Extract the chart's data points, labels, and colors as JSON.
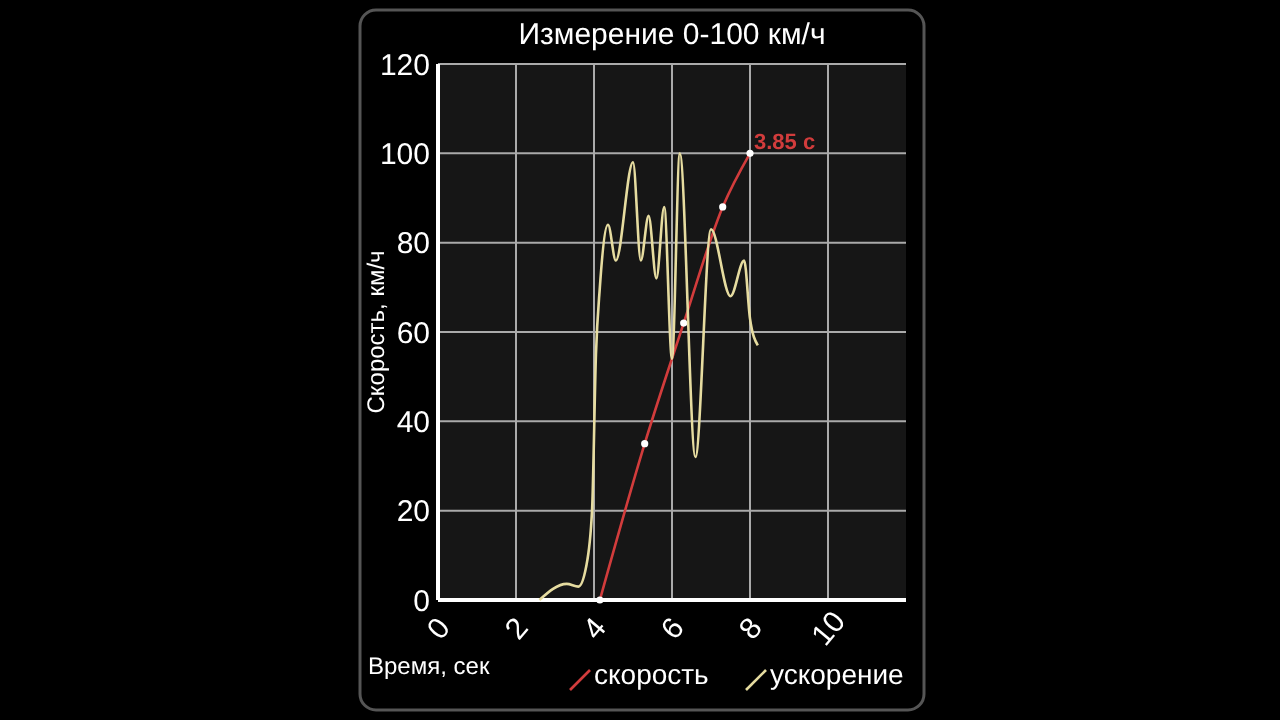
{
  "chart_data": {
    "type": "line",
    "title": "Измерение 0-100 км/ч",
    "xlabel": "Время, сек",
    "ylabel": "Скорость, км/ч",
    "xlim": [
      0,
      12
    ],
    "xticks": [
      0,
      2,
      4,
      6,
      8,
      10
    ],
    "ylim": [
      0,
      120
    ],
    "yticks": [
      0,
      20,
      40,
      60,
      80,
      100,
      120
    ],
    "grid": true,
    "legend": "bottom",
    "line_style": "solid",
    "series": [
      {
        "name": "скорость",
        "color": "#d23c3c",
        "marker": "circle",
        "x": [
          4.15,
          5.3,
          6.3,
          7.3,
          8.0
        ],
        "values": [
          0,
          35,
          62,
          88,
          100
        ]
      },
      {
        "name": "ускорение",
        "color": "#e6dca0",
        "marker": "none",
        "x": [
          2.6,
          3.3,
          3.6,
          3.8,
          3.95,
          4.05,
          4.15,
          4.36,
          4.56,
          5.0,
          5.2,
          5.4,
          5.6,
          5.8,
          6.0,
          6.2,
          6.6,
          7.0,
          7.5,
          7.85,
          8.0,
          8.2
        ],
        "values": [
          0,
          3.6,
          3,
          7.5,
          20,
          55,
          70,
          84,
          76,
          98,
          76,
          86,
          72,
          88,
          54,
          100,
          32,
          83,
          68,
          76,
          63,
          57
        ]
      }
    ],
    "annotations": [
      {
        "text": "3.85 с",
        "x": 8,
        "y": 100
      }
    ]
  }
}
